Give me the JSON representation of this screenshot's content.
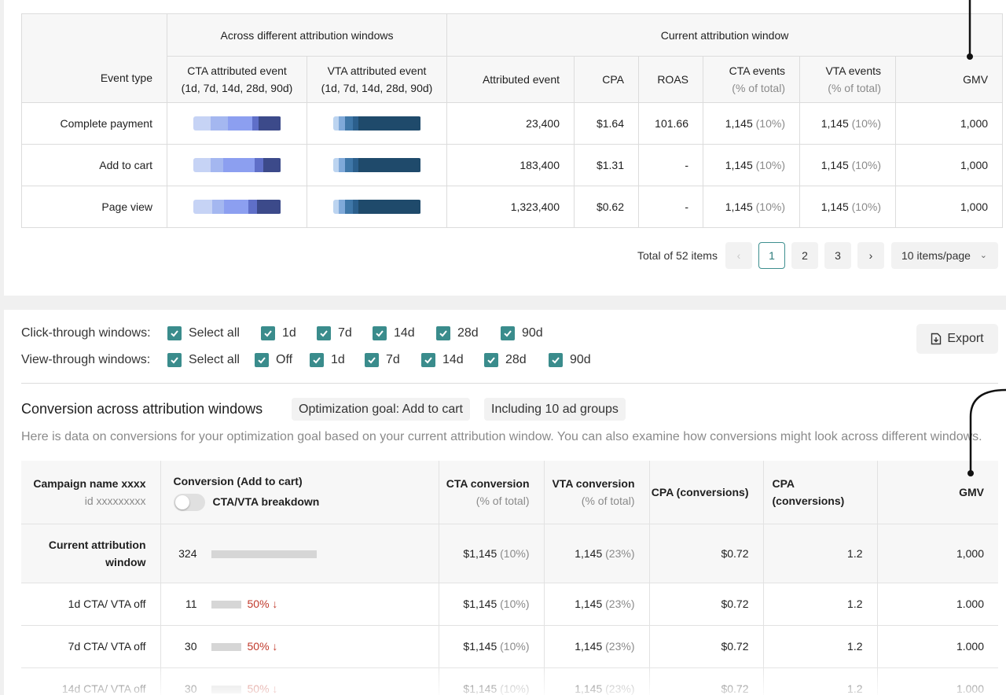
{
  "top_table": {
    "group_headers": {
      "across": "Across different attribution windows",
      "current": "Current attribution window"
    },
    "columns": {
      "event_type": "Event type",
      "cta_attributed": [
        "CTA attributed event",
        "(1d, 7d, 14d, 28d, 90d)"
      ],
      "vta_attributed": [
        "VTA attributed event",
        "(1d, 7d, 14d, 28d, 90d)"
      ],
      "attributed_event": "Attributed event",
      "cpa": "CPA",
      "roas": "ROAS",
      "cta_events": [
        "CTA events",
        "(% of total)"
      ],
      "vta_events": [
        "VTA events",
        "(% of total)"
      ],
      "gmv": "GMV"
    },
    "cta_bar_colors": [
      "#c6d3f5",
      "#a4b7f0",
      "#8c9ff0",
      "#5f6fc8",
      "#3c4a8a"
    ],
    "vta_bar_colors": [
      "#bcd4f0",
      "#7fa9d9",
      "#3f77a8",
      "#2b5f8c",
      "#1f4a6b"
    ],
    "rows": [
      {
        "event": "Complete payment",
        "cta_segments": [
          0.2,
          0.2,
          0.27,
          0.08,
          0.25
        ],
        "vta_segments": [
          0.07,
          0.07,
          0.09,
          0.06,
          0.71
        ],
        "attributed": "23,400",
        "cpa": "$1.64",
        "roas": "101.66",
        "cta_value": "1,145",
        "cta_pct": "(10%)",
        "vta_value": "1,145",
        "vta_pct": "(10%)",
        "gmv": "1,000"
      },
      {
        "event": "Add to cart",
        "cta_segments": [
          0.2,
          0.14,
          0.36,
          0.1,
          0.2
        ],
        "vta_segments": [
          0.07,
          0.07,
          0.09,
          0.06,
          0.71
        ],
        "attributed": "183,400",
        "cpa": "$1.31",
        "roas": "-",
        "cta_value": "1,145",
        "cta_pct": "(10%)",
        "vta_value": "1,145",
        "vta_pct": "(10%)",
        "gmv": "1,000"
      },
      {
        "event": "Page view",
        "cta_segments": [
          0.22,
          0.13,
          0.28,
          0.1,
          0.27
        ],
        "vta_segments": [
          0.07,
          0.07,
          0.09,
          0.06,
          0.71
        ],
        "attributed": "1,323,400",
        "cpa": "$0.62",
        "roas": "-",
        "cta_value": "1,145",
        "cta_pct": "(10%)",
        "vta_value": "1,145",
        "vta_pct": "(10%)",
        "gmv": "1,000"
      }
    ]
  },
  "pagination": {
    "total": "Total of 52 items",
    "prev": "‹",
    "pages": [
      "1",
      "2",
      "3"
    ],
    "current_page": "1",
    "next": "›",
    "page_size": "10 items/page"
  },
  "filters": {
    "click_label": "Click-through windows:",
    "click_options": [
      "Select all",
      "1d",
      "7d",
      "14d",
      "28d",
      "90d"
    ],
    "view_label": "View-through windows:",
    "view_options": [
      "Select all",
      "Off",
      "1d",
      "7d",
      "14d",
      "28d",
      "90d"
    ]
  },
  "export_label": "Export",
  "conversion": {
    "title": "Conversion across attribution windows",
    "tags": [
      "Optimization goal: Add to cart",
      "Including 10 ad groups"
    ],
    "description": "Here is data on conversions for your optimization goal based on your current attribution window. You can also examine how conversions might look across different windows.",
    "columns": {
      "campaign_name": "Campaign name xxxx",
      "campaign_id": "id xxxxxxxxx",
      "conversion": "Conversion (Add to cart)",
      "toggle_label": "CTA/VTA breakdown",
      "cta_conversion": [
        "CTA conversion",
        "(% of total)"
      ],
      "vta_conversion": [
        "VTA conversion",
        "(% of total)"
      ],
      "cpa1": "CPA (conversions)",
      "cpa2": "CPA (conversions)",
      "gmv": "GMV"
    },
    "current_row": {
      "label": "Current attribution window",
      "conversions": "324",
      "bar_fraction": 1.0,
      "cta_value": "$1,145",
      "cta_pct": "(10%)",
      "vta_value": "1,145",
      "vta_pct": "(23%)",
      "cpa1": "$0.72",
      "cpa2": "1.2",
      "gmv": "1,000"
    },
    "rows": [
      {
        "label": "1d CTA/ VTA off",
        "conversions": "11",
        "bar_fraction": 0.28,
        "change": "50%",
        "cta_value": "$1,145",
        "cta_pct": "(10%)",
        "vta_value": "1,145",
        "vta_pct": "(23%)",
        "cpa1": "$0.72",
        "cpa2": "1.2",
        "gmv": "1.000"
      },
      {
        "label": "7d CTA/ VTA off",
        "conversions": "30",
        "bar_fraction": 0.28,
        "change": "50%",
        "cta_value": "$1,145",
        "cta_pct": "(10%)",
        "vta_value": "1,145",
        "vta_pct": "(23%)",
        "cpa1": "$0.72",
        "cpa2": "1.2",
        "gmv": "1.000"
      },
      {
        "label": "14d CTA/ VTA off",
        "conversions": "30",
        "bar_fraction": 0.28,
        "change": "50%",
        "cta_value": "$1,145",
        "cta_pct": "(10%)",
        "vta_value": "1,145",
        "vta_pct": "(23%)",
        "cpa1": "$0.72",
        "cpa2": "1.2",
        "gmv": "1.000"
      }
    ]
  },
  "colors": {
    "accent": "#3a8c8c",
    "decrease": "#c0392b"
  }
}
